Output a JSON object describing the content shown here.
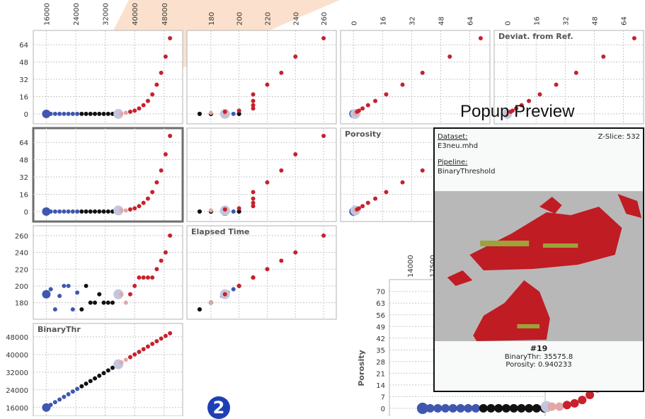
{
  "chart_data": {
    "type": "scatter",
    "variables": [
      "BinaryThr",
      "Elapsed Time",
      "Porosity",
      "Deviat. from Ref."
    ],
    "variable_ticks": {
      "BinaryThr": [
        16000,
        24000,
        32000,
        40000,
        48000
      ],
      "Elapsed Time": [
        180,
        200,
        220,
        240,
        260
      ],
      "Porosity": [
        0,
        16,
        32,
        48,
        64
      ],
      "Deviat. from Ref.": [
        0,
        16,
        32,
        48,
        64
      ]
    },
    "panel_titles": [
      "Deviat. from Ref.",
      "Porosity",
      "Elapsed Time",
      "BinaryThr"
    ],
    "points": [
      {
        "BinaryThr": 16000,
        "Elapsed Time": 190,
        "Porosity": 0,
        "Deviat. from Ref.": 0,
        "group": "blue"
      },
      {
        "BinaryThr": 17200,
        "Elapsed Time": 196,
        "Porosity": 0,
        "Deviat. from Ref.": 0,
        "group": "blue"
      },
      {
        "BinaryThr": 18400,
        "Elapsed Time": 172,
        "Porosity": 0,
        "Deviat. from Ref.": 0,
        "group": "blue"
      },
      {
        "BinaryThr": 19600,
        "Elapsed Time": 188,
        "Porosity": 0,
        "Deviat. from Ref.": 0,
        "group": "blue"
      },
      {
        "BinaryThr": 20800,
        "Elapsed Time": 200,
        "Porosity": 0,
        "Deviat. from Ref.": 0,
        "group": "blue"
      },
      {
        "BinaryThr": 22000,
        "Elapsed Time": 200,
        "Porosity": 0,
        "Deviat. from Ref.": 0,
        "group": "blue"
      },
      {
        "BinaryThr": 23200,
        "Elapsed Time": 172,
        "Porosity": 0,
        "Deviat. from Ref.": 0,
        "group": "blue"
      },
      {
        "BinaryThr": 24400,
        "Elapsed Time": 192,
        "Porosity": 0,
        "Deviat. from Ref.": 0,
        "group": "blue"
      },
      {
        "BinaryThr": 25600,
        "Elapsed Time": 172,
        "Porosity": 0,
        "Deviat. from Ref.": 0,
        "group": "black"
      },
      {
        "BinaryThr": 26800,
        "Elapsed Time": 200,
        "Porosity": 0,
        "Deviat. from Ref.": 0,
        "group": "black"
      },
      {
        "BinaryThr": 28000,
        "Elapsed Time": 180,
        "Porosity": 0,
        "Deviat. from Ref.": 0,
        "group": "black"
      },
      {
        "BinaryThr": 29200,
        "Elapsed Time": 180,
        "Porosity": 0,
        "Deviat. from Ref.": 0,
        "group": "black"
      },
      {
        "BinaryThr": 30400,
        "Elapsed Time": 190,
        "Porosity": 0,
        "Deviat. from Ref.": 0,
        "group": "black"
      },
      {
        "BinaryThr": 31600,
        "Elapsed Time": 180,
        "Porosity": 0,
        "Deviat. from Ref.": 0,
        "group": "black"
      },
      {
        "BinaryThr": 32800,
        "Elapsed Time": 180,
        "Porosity": 0,
        "Deviat. from Ref.": 0,
        "group": "black"
      },
      {
        "BinaryThr": 34000,
        "Elapsed Time": 180,
        "Porosity": 0,
        "Deviat. from Ref.": 0,
        "group": "black"
      },
      {
        "BinaryThr": 35200,
        "Elapsed Time": 190,
        "Porosity": 0,
        "Deviat. from Ref.": 0,
        "group": "black"
      },
      {
        "BinaryThr": 35576,
        "Elapsed Time": 190,
        "Porosity": 1,
        "Deviat. from Ref.": 0,
        "group": "selected"
      },
      {
        "BinaryThr": 36400,
        "Elapsed Time": 190,
        "Porosity": 1,
        "Deviat. from Ref.": 0,
        "group": "light"
      },
      {
        "BinaryThr": 37600,
        "Elapsed Time": 180,
        "Porosity": 1,
        "Deviat. from Ref.": 1,
        "group": "light"
      },
      {
        "BinaryThr": 38800,
        "Elapsed Time": 190,
        "Porosity": 2,
        "Deviat. from Ref.": 2,
        "group": "red"
      },
      {
        "BinaryThr": 40000,
        "Elapsed Time": 200,
        "Porosity": 3,
        "Deviat. from Ref.": 3,
        "group": "red"
      },
      {
        "BinaryThr": 41200,
        "Elapsed Time": 210,
        "Porosity": 5,
        "Deviat. from Ref.": 5,
        "group": "red"
      },
      {
        "BinaryThr": 42400,
        "Elapsed Time": 210,
        "Porosity": 8,
        "Deviat. from Ref.": 8,
        "group": "red"
      },
      {
        "BinaryThr": 43600,
        "Elapsed Time": 210,
        "Porosity": 12,
        "Deviat. from Ref.": 12,
        "group": "red"
      },
      {
        "BinaryThr": 44800,
        "Elapsed Time": 210,
        "Porosity": 18,
        "Deviat. from Ref.": 18,
        "group": "red"
      },
      {
        "BinaryThr": 46000,
        "Elapsed Time": 220,
        "Porosity": 27,
        "Deviat. from Ref.": 27,
        "group": "red"
      },
      {
        "BinaryThr": 47200,
        "Elapsed Time": 230,
        "Porosity": 38,
        "Deviat. from Ref.": 38,
        "group": "red"
      },
      {
        "BinaryThr": 48400,
        "Elapsed Time": 240,
        "Porosity": 53,
        "Deviat. from Ref.": 53,
        "group": "red"
      },
      {
        "BinaryThr": 49600,
        "Elapsed Time": 260,
        "Porosity": 70,
        "Deviat. from Ref.": 70,
        "group": "red"
      }
    ],
    "detail_plot": {
      "ylabel": "Porosity",
      "yticks": [
        0,
        7,
        14,
        21,
        28,
        35,
        42,
        49,
        56,
        63,
        70
      ],
      "xticks": [
        14000,
        17500
      ]
    },
    "popup": {
      "title": "Popup Preview",
      "dataset_label": "Dataset:",
      "dataset_value": "E3neu.mhd",
      "pipeline_label": "Pipeline:",
      "pipeline_value": "BinaryThreshold",
      "zslice": "Z-Slice: 532",
      "id": "#19",
      "line1": "BinaryThr: 35575.8",
      "line2": "Porosity: 0.940233"
    },
    "badge": "2",
    "colors": {
      "blue": "#3f57ae",
      "black": "#111111",
      "selected": "#c3c6dc",
      "light": "#e3a7a7",
      "red": "#c7212c",
      "grid": "#c8c8c8",
      "frame": "#b3b3b3"
    }
  }
}
